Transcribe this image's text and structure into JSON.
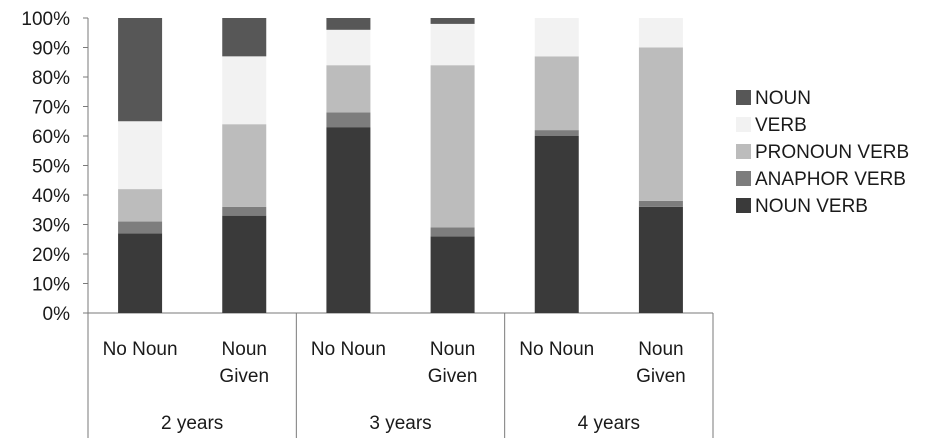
{
  "chart_data": {
    "type": "bar",
    "stacked": true,
    "percent": true,
    "title": "",
    "xlabel": "",
    "ylabel": "",
    "ylim": [
      0,
      100
    ],
    "y_ticks": [
      "0%",
      "10%",
      "20%",
      "30%",
      "40%",
      "50%",
      "60%",
      "70%",
      "80%",
      "90%",
      "100%"
    ],
    "categories": [
      "No Noun",
      "Noun Given",
      "No Noun",
      "Noun Given",
      "No Noun",
      "Noun Given"
    ],
    "category_lines": [
      [
        "No Noun"
      ],
      [
        "Noun",
        "Given"
      ],
      [
        "No Noun"
      ],
      [
        "Noun",
        "Given"
      ],
      [
        "No Noun"
      ],
      [
        "Noun",
        "Given"
      ]
    ],
    "groups": [
      {
        "label": "2 years",
        "span": 2
      },
      {
        "label": "3 years",
        "span": 2
      },
      {
        "label": "4 years",
        "span": 2
      }
    ],
    "legend_position": "right",
    "legend_order": [
      "NOUN",
      "VERB",
      "PRONOUN VERB",
      "ANAPHOR VERB",
      "NOUN VERB"
    ],
    "grid": false,
    "series": [
      {
        "name": "NOUN VERB",
        "color": "#3a3a3a",
        "values": [
          27,
          33,
          63,
          26,
          60,
          36
        ]
      },
      {
        "name": "ANAPHOR VERB",
        "color": "#7d7d7d",
        "values": [
          4,
          3,
          5,
          3,
          2,
          2
        ]
      },
      {
        "name": "PRONOUN VERB",
        "color": "#bcbcbc",
        "values": [
          11,
          28,
          16,
          55,
          25,
          52
        ]
      },
      {
        "name": "VERB",
        "color": "#f2f2f2",
        "values": [
          23,
          23,
          12,
          14,
          13,
          10
        ]
      },
      {
        "name": "NOUN",
        "color": "#575757",
        "values": [
          35,
          13,
          4,
          2,
          0,
          0
        ]
      }
    ]
  }
}
